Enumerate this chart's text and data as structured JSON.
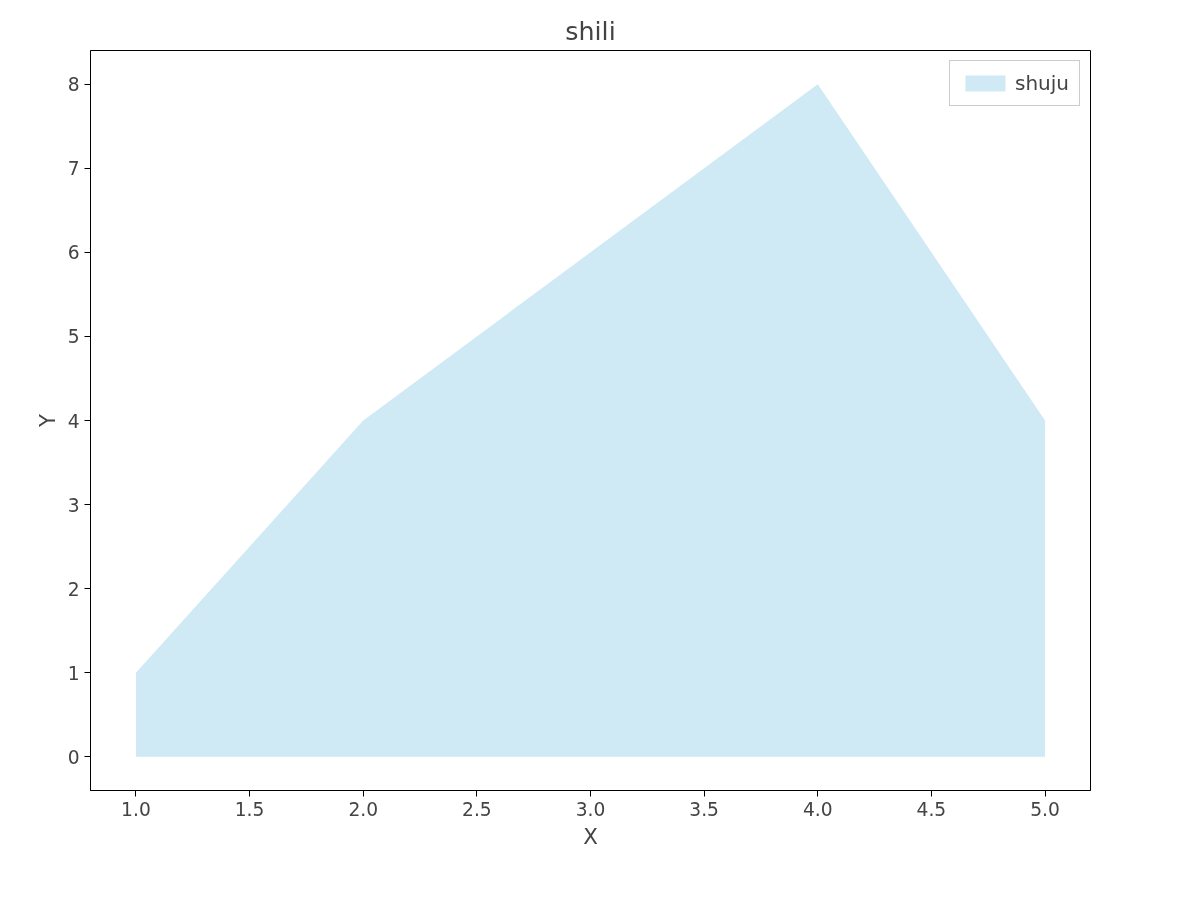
{
  "chart_data": {
    "type": "area",
    "title": "shili",
    "xlabel": "X",
    "ylabel": "Y",
    "x": [
      1,
      2,
      3,
      4,
      5
    ],
    "series": [
      {
        "name": "shuju",
        "color": "#cfe9f5",
        "values": [
          1,
          4,
          6,
          8,
          4
        ]
      }
    ],
    "xlim": [
      0.8,
      5.2
    ],
    "ylim": [
      -0.4,
      8.4
    ],
    "xticks": [
      {
        "value": 1,
        "label": "1.0"
      },
      {
        "value": 1.5,
        "label": "1.5"
      },
      {
        "value": 2,
        "label": "2.0"
      },
      {
        "value": 2.5,
        "label": "2.5"
      },
      {
        "value": 3,
        "label": "3.0"
      },
      {
        "value": 3.5,
        "label": "3.5"
      },
      {
        "value": 4,
        "label": "4.0"
      },
      {
        "value": 4.5,
        "label": "4.5"
      },
      {
        "value": 5,
        "label": "5.0"
      }
    ],
    "yticks": [
      0,
      1,
      2,
      3,
      4,
      5,
      6,
      7,
      8
    ],
    "grid": false,
    "legend": "top right"
  }
}
